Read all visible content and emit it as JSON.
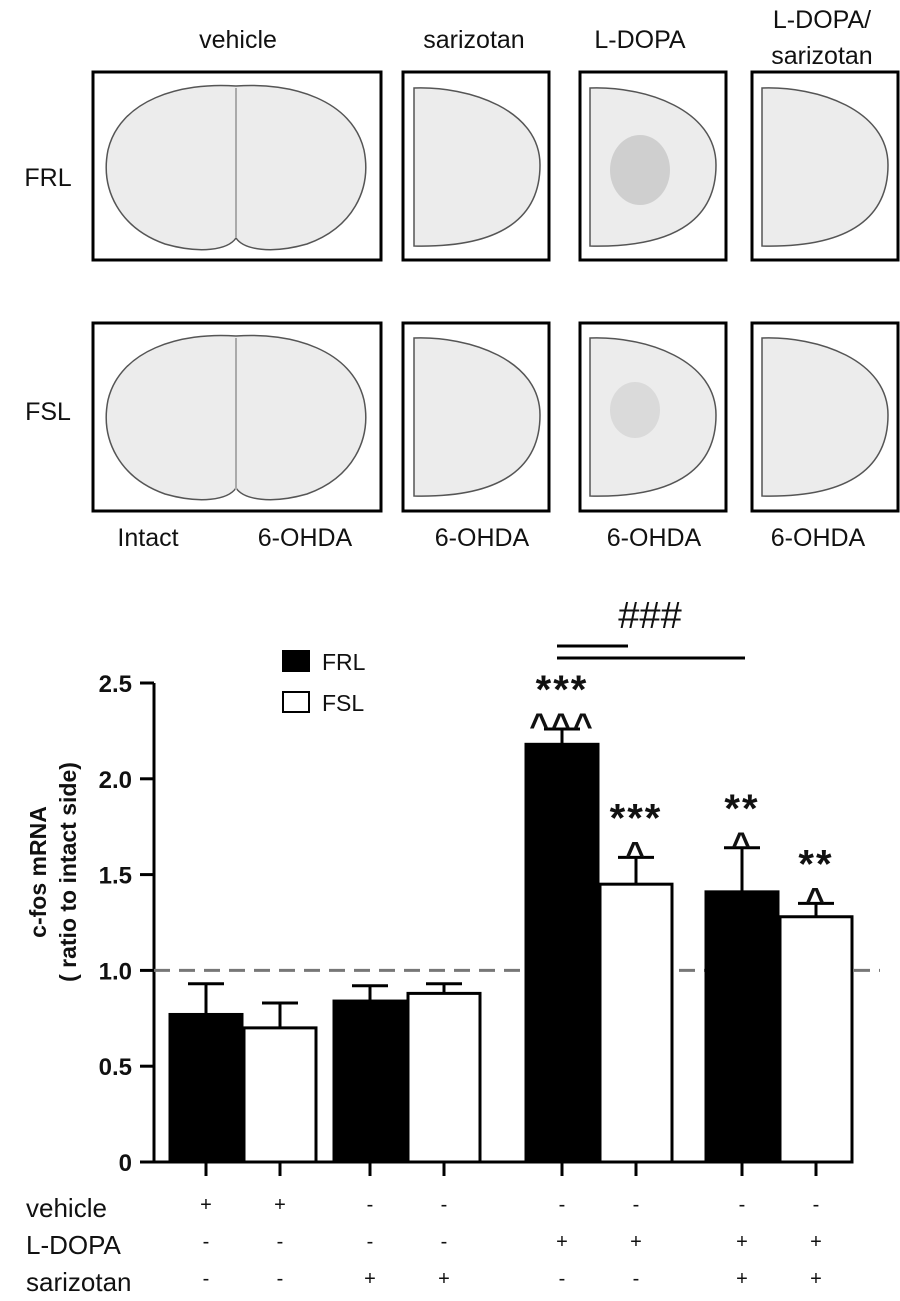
{
  "top_panels": {
    "column_headers": [
      "vehicle",
      "sarizotan",
      "L-DOPA",
      "L-DOPA/",
      "sarizotan"
    ],
    "row_labels": [
      "FRL",
      "FSL"
    ],
    "bottom_labels": [
      "Intact",
      "6-OHDA",
      "6-OHDA",
      "6-OHDA",
      "6-OHDA"
    ]
  },
  "chart_data": {
    "type": "bar",
    "title": "",
    "xlabel": "",
    "ylabel_line1": "c-fos mRNA",
    "ylabel_line2": "( ratio to intact side)",
    "ylim": [
      0,
      2.5
    ],
    "yticks": [
      "0",
      "0.5",
      "1.0",
      "1.5",
      "2.0",
      "2.5"
    ],
    "ytick_values": [
      0,
      0.5,
      1.0,
      1.5,
      2.0,
      2.5
    ],
    "reference_line": 1.0,
    "legend": {
      "placement": "top-left",
      "entries": [
        "FRL",
        "FSL"
      ]
    },
    "series_colors": {
      "FRL": "#000000",
      "FSL": "#ffffff"
    },
    "bars": [
      {
        "series": "FRL",
        "value": 0.77,
        "error": 0.16,
        "annot": []
      },
      {
        "series": "FSL",
        "value": 0.7,
        "error": 0.13,
        "annot": []
      },
      {
        "series": "FRL",
        "value": 0.84,
        "error": 0.08,
        "annot": []
      },
      {
        "series": "FSL",
        "value": 0.88,
        "error": 0.05,
        "annot": []
      },
      {
        "series": "FRL",
        "value": 2.18,
        "error": 0.08,
        "annot": [
          "***",
          "^^^"
        ]
      },
      {
        "series": "FSL",
        "value": 1.45,
        "error": 0.14,
        "annot": [
          "***",
          "^"
        ]
      },
      {
        "series": "FRL",
        "value": 1.41,
        "error": 0.23,
        "annot": [
          "**",
          "^"
        ]
      },
      {
        "series": "FSL",
        "value": 1.28,
        "error": 0.07,
        "annot": [
          "**",
          "^"
        ]
      }
    ],
    "significance": "###",
    "treatment_rows": [
      {
        "label": "vehicle",
        "signs": [
          "+",
          "+",
          "-",
          "-",
          "-",
          "-",
          "-",
          "-"
        ]
      },
      {
        "label": "L-DOPA",
        "signs": [
          "-",
          "-",
          "-",
          "-",
          "+",
          "+",
          "+",
          "+"
        ]
      },
      {
        "label": "sarizotan",
        "signs": [
          "-",
          "-",
          "+",
          "+",
          "-",
          "-",
          "+",
          "+"
        ]
      }
    ]
  }
}
